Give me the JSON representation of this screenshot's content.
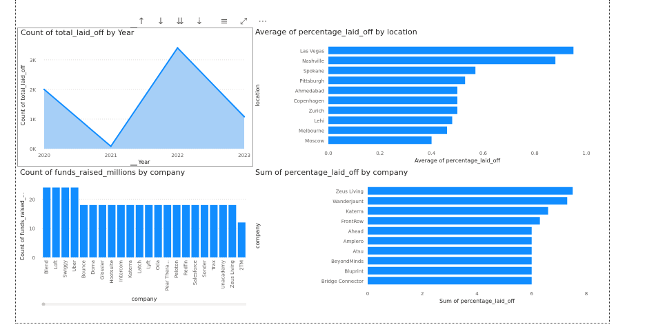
{
  "header_icons": [
    {
      "name": "sort-up-icon",
      "glyph": "↑"
    },
    {
      "name": "sort-down-icon",
      "glyph": "↓"
    },
    {
      "name": "drill-down-all-icon",
      "glyph": "⇊"
    },
    {
      "name": "expand-hierarchy-icon",
      "glyph": "⇣"
    },
    {
      "name": "filter-icon",
      "glyph": "≡"
    },
    {
      "name": "focus-mode-icon",
      "glyph": "⤢"
    },
    {
      "name": "more-options-icon",
      "glyph": "⋯"
    }
  ],
  "colors": {
    "bar": "#118DFF",
    "area_fill": "#A6CFF7",
    "line": "#118DFF",
    "grid": "#e1dfdd"
  },
  "chart_data": [
    {
      "id": "laid_off_by_year",
      "type": "area",
      "title": "Count of total_laid_off by Year",
      "xlabel": "Year",
      "ylabel": "Count of total_laid_off",
      "categories": [
        "2020",
        "2021",
        "2022",
        "2023"
      ],
      "values": [
        2000,
        80,
        3400,
        1080
      ],
      "yticks": [
        "0K",
        "1K",
        "2K",
        "3K"
      ],
      "ylim": [
        0,
        3600
      ],
      "grid": true
    },
    {
      "id": "pct_by_location",
      "type": "bar",
      "orientation": "horizontal",
      "title": "Average of percentage_laid_off by location",
      "xlabel": "Average of percentage_laid_off",
      "ylabel": "location",
      "categories": [
        "Las Vegas",
        "Nashville",
        "Spokane",
        "Pittsburgh",
        "Ahmedabad",
        "Copenhagen",
        "Zurich",
        "Lehi",
        "Melbourne",
        "Moscow"
      ],
      "values": [
        0.95,
        0.88,
        0.57,
        0.53,
        0.5,
        0.5,
        0.5,
        0.48,
        0.46,
        0.4
      ],
      "xticks": [
        "0.0",
        "0.2",
        "0.4",
        "0.6",
        "0.8",
        "1.0"
      ],
      "xlim": [
        0,
        1.0
      ]
    },
    {
      "id": "funds_by_company",
      "type": "bar",
      "orientation": "vertical",
      "title": "Count of funds_raised_millions by company",
      "xlabel": "company",
      "ylabel": "Count of funds_raised_...",
      "categories": [
        "Blend",
        "Loft",
        "Swiggy",
        "Uber",
        "Bounce",
        "Doma",
        "Glossier",
        "Hootsuite",
        "Intercom",
        "Katerra",
        "Latch",
        "Lyft",
        "Oda",
        "Pear Thera...",
        "Peloton",
        "Redfin",
        "Salesforce",
        "Sonder",
        "Trax",
        "Unacademy",
        "Zeus Living",
        "2TM"
      ],
      "values": [
        24,
        24,
        24,
        24,
        18,
        18,
        18,
        18,
        18,
        18,
        18,
        18,
        18,
        18,
        18,
        18,
        18,
        18,
        18,
        18,
        18,
        12
      ],
      "yticks": [
        "0",
        "10",
        "20"
      ],
      "ylim": [
        0,
        26
      ]
    },
    {
      "id": "pct_by_company",
      "type": "bar",
      "orientation": "horizontal",
      "title": "Sum of percentage_laid_off by company",
      "xlabel": "Sum of percentage_laid_off",
      "ylabel": "company",
      "categories": [
        "Zeus Living",
        "WanderJaunt",
        "Katerra",
        "FrontRow",
        "Ahead",
        "Amplero",
        "Atsu",
        "BeyondMinds",
        "Bluprint",
        "Bridge Connector"
      ],
      "values": [
        7.5,
        7.3,
        6.6,
        6.3,
        6.0,
        6.0,
        6.0,
        6.0,
        6.0,
        6.0
      ],
      "xticks": [
        "0",
        "2",
        "4",
        "6",
        "8"
      ],
      "xlim": [
        0,
        8
      ]
    }
  ]
}
